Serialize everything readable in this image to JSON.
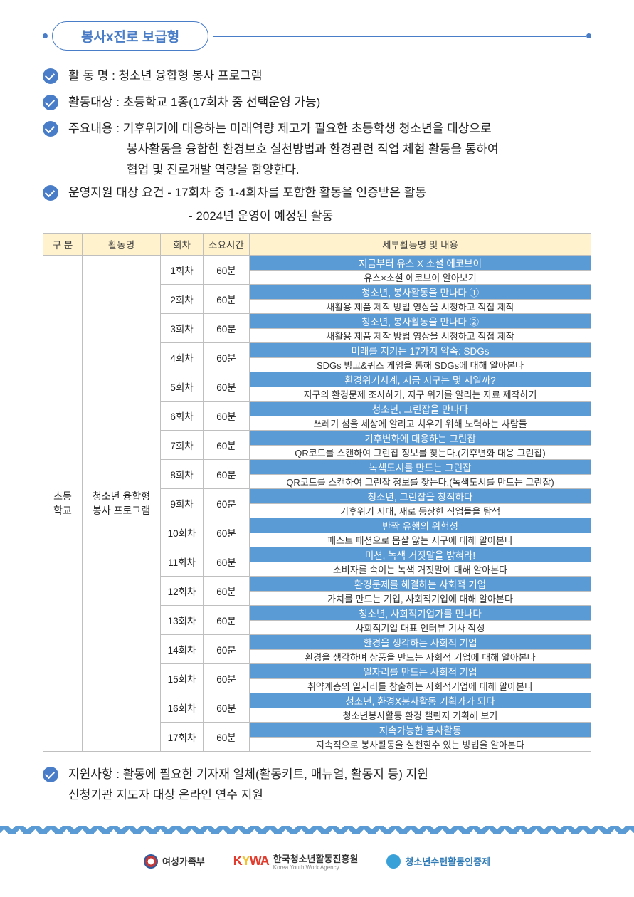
{
  "title": "봉사x진로 보급형",
  "items": {
    "name": "활 동 명 : 청소년 융합형 봉사 프로그램",
    "target": "활동대상 : 초등학교 1종(17회차 중 선택운영 가능)",
    "content_lead": "주요내용 : 기후위기에 대응하는 미래역량 제고가 필요한 초등학생 청소년을 대상으로",
    "content_l2": "봉사활동을 융합한 환경보호 실천방법과 환경관련 직업 체험 활동을 통하여",
    "content_l3": "협업 및 진로개발 역량을 함양한다.",
    "req_lead": "운영지원 대상 요건   - 17회차 중 1-4회차를 포함한 활동을 인증받은 활동",
    "req_l2": "- 2024년 운영이 예정된 활동",
    "support_l1": "지원사항 : 활동에 필요한 기자재 일체(활동키트, 매뉴얼, 활동지 등) 지원",
    "support_l2": "신청기관 지도자 대상 온라인 연수 지원"
  },
  "table": {
    "headers": [
      "구 분",
      "활동명",
      "회차",
      "소요시간",
      "세부활동명 및 내용"
    ],
    "group": "초등\n학교",
    "program": "청소년 융합형\n봉사 프로그램",
    "duration": "60분",
    "sessions": [
      {
        "no": "1회차",
        "title": "지금부터 유스 X 소셜 에코브이",
        "desc": "유스×소셜 에코브이 알아보기"
      },
      {
        "no": "2회차",
        "title": "청소년, 봉사활동을 만나다 ①",
        "desc": "새활용 제품 제작 방법 영상을 시청하고 직접 제작"
      },
      {
        "no": "3회차",
        "title": "청소년, 봉사활동을 만나다 ②",
        "desc": "새활용 제품 제작 방법 영상을 시청하고 직접 제작"
      },
      {
        "no": "4회차",
        "title": "미래를 지키는 17가지 약속: SDGs",
        "desc": "SDGs 빙고&퀴즈 게임을 통해 SDGs에 대해 알아본다"
      },
      {
        "no": "5회차",
        "title": "환경위기시계, 지금 지구는 몇 시일까?",
        "desc": "지구의 환경문제 조사하기, 지구 위기를 알리는 자료 제작하기"
      },
      {
        "no": "6회차",
        "title": "청소년, 그린잡을 만나다",
        "desc": "쓰레기 섬을 세상에 알리고 치우기 위해 노력하는 사람들"
      },
      {
        "no": "7회차",
        "title": "기후변화에 대응하는 그린잡",
        "desc": "QR코드를 스캔하여 그린잡 정보를 찾는다.(기후변화 대응 그린잡)"
      },
      {
        "no": "8회차",
        "title": "녹색도시를 만드는 그린잡",
        "desc": "QR코드를 스캔하여 그린잡 정보를 찾는다.(녹색도시를 만드는 그린잡)"
      },
      {
        "no": "9회차",
        "title": "청소년, 그린잡을 창직하다",
        "desc": "기후위기 시대, 새로 등장한 직업들을 탐색"
      },
      {
        "no": "10회차",
        "title": "반짝 유행의 위험성",
        "desc": "패스트 패션으로 몸살 앓는 지구에 대해 알아본다"
      },
      {
        "no": "11회차",
        "title": "미션, 녹색 거짓말을 밝혀라!",
        "desc": "소비자를 속이는 녹색 거짓말에 대해 알아본다"
      },
      {
        "no": "12회차",
        "title": "환경문제를 해결하는 사회적 기업",
        "desc": "가치를 만드는 기업, 사회적기업에 대해 알아본다"
      },
      {
        "no": "13회차",
        "title": "청소년, 사회적기업가를 만나다",
        "desc": "사회적기업 대표 인터뷰 기사 작성"
      },
      {
        "no": "14회차",
        "title": "환경을 생각하는 사회적 기업",
        "desc": "환경을 생각하며 상품을 만드는 사회적 기업에 대해 알아본다"
      },
      {
        "no": "15회차",
        "title": "일자리를 만드는 사회적 기업",
        "desc": "취약계층의 일자리를 창출하는 사회적기업에 대해 알아본다"
      },
      {
        "no": "16회차",
        "title": "청소년, 환경X봉사활동 기획가가 되다",
        "desc": "청소년봉사활동 환경 챌린지 기획해 보기"
      },
      {
        "no": "17회차",
        "title": "지속가능한 봉사활동",
        "desc": "지속적으로 봉사활동을 실천할수 있는 방법을 알아본다"
      }
    ]
  },
  "footer": {
    "org1": "여성가족부",
    "org2_mark": "KYWA",
    "org2": "한국청소년활동진흥원",
    "org2_sub": "Korea Youth Work Agency",
    "org3": "청소년수련활동인증제"
  }
}
